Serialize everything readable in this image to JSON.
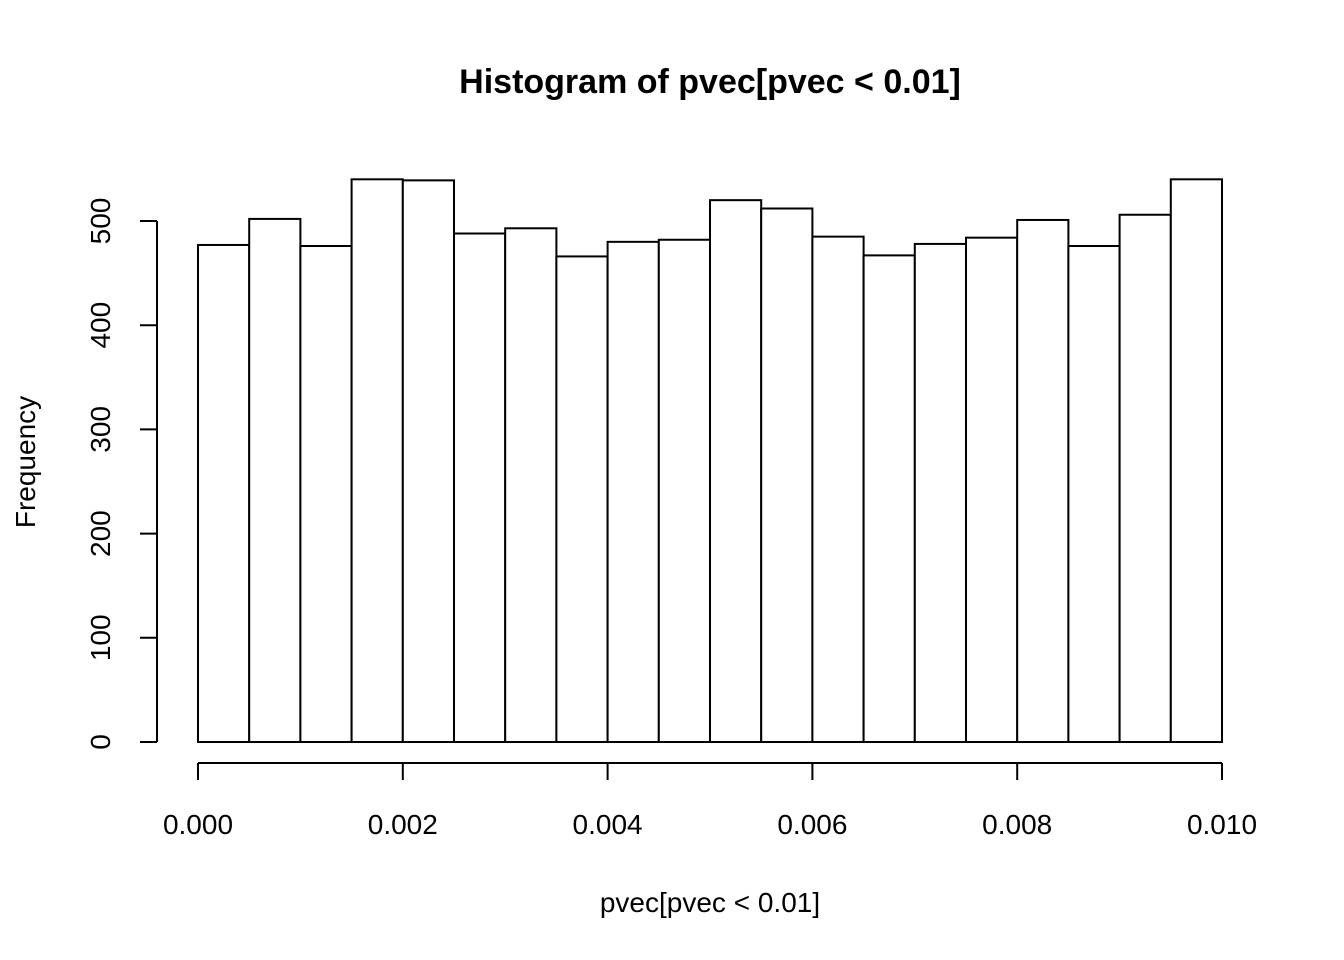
{
  "chart_data": {
    "type": "bar",
    "title": "Histogram of pvec[pvec < 0.01]",
    "xlabel": "pvec[pvec < 0.01]",
    "ylabel": "Frequency",
    "xlim": [
      0,
      0.01
    ],
    "ylim": [
      0,
      540
    ],
    "bin_width": 0.0005,
    "bin_starts": [
      0.0,
      0.0005,
      0.001,
      0.0015,
      0.002,
      0.0025,
      0.003,
      0.0035,
      0.004,
      0.0045,
      0.005,
      0.0055,
      0.006,
      0.0065,
      0.007,
      0.0075,
      0.008,
      0.0085,
      0.009,
      0.0095
    ],
    "values": [
      477,
      502,
      476,
      540,
      539,
      488,
      493,
      466,
      480,
      482,
      520,
      512,
      485,
      467,
      478,
      484,
      501,
      476,
      506,
      540
    ],
    "x_ticks": [
      0,
      0.002,
      0.004,
      0.006,
      0.008,
      0.01
    ],
    "x_tick_labels": [
      "0.000",
      "0.002",
      "0.004",
      "0.006",
      "0.008",
      "0.010"
    ],
    "y_ticks": [
      0,
      100,
      200,
      300,
      400,
      500
    ],
    "y_tick_labels": [
      "0",
      "100",
      "200",
      "300",
      "400",
      "500"
    ],
    "grid": false,
    "colors": {
      "bar_fill": "#ffffff",
      "bar_stroke": "#000000"
    }
  }
}
